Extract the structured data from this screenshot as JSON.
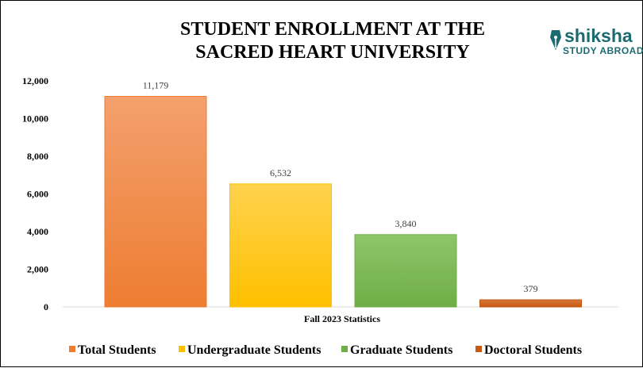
{
  "chart_data": {
    "type": "bar",
    "title_lines": [
      "STUDENT ENROLLMENT AT THE",
      "SACRED HEART UNIVERSITY"
    ],
    "categories": [
      "Fall 2023 Statistics"
    ],
    "series": [
      {
        "name": "Total Students",
        "values": [
          11179
        ],
        "label": "11,179",
        "color": "#ed7d31",
        "color_light": "#f4a06e"
      },
      {
        "name": "Undergraduate Students",
        "values": [
          6532
        ],
        "label": "6,532",
        "color": "#ffc000",
        "color_light": "#ffd24d"
      },
      {
        "name": "Graduate Students",
        "values": [
          3840
        ],
        "label": "3,840",
        "color": "#70ad47",
        "color_light": "#8dc66a"
      },
      {
        "name": "Doctoral Students",
        "values": [
          379
        ],
        "label": "379",
        "color": "#c55a11",
        "color_light": "#d9773a"
      }
    ],
    "yticks": [
      {
        "value": 0,
        "label": "0"
      },
      {
        "value": 2000,
        "label": "2,000"
      },
      {
        "value": 4000,
        "label": "4,000"
      },
      {
        "value": 6000,
        "label": "6,000"
      },
      {
        "value": 8000,
        "label": "8,000"
      },
      {
        "value": 10000,
        "label": "10,000"
      },
      {
        "value": 12000,
        "label": "12,000"
      }
    ],
    "ylim": [
      0,
      12000
    ],
    "grid": false,
    "legend_position": "bottom"
  },
  "logo": {
    "main": "shiksha",
    "sub": "STUDY ABROAD"
  }
}
